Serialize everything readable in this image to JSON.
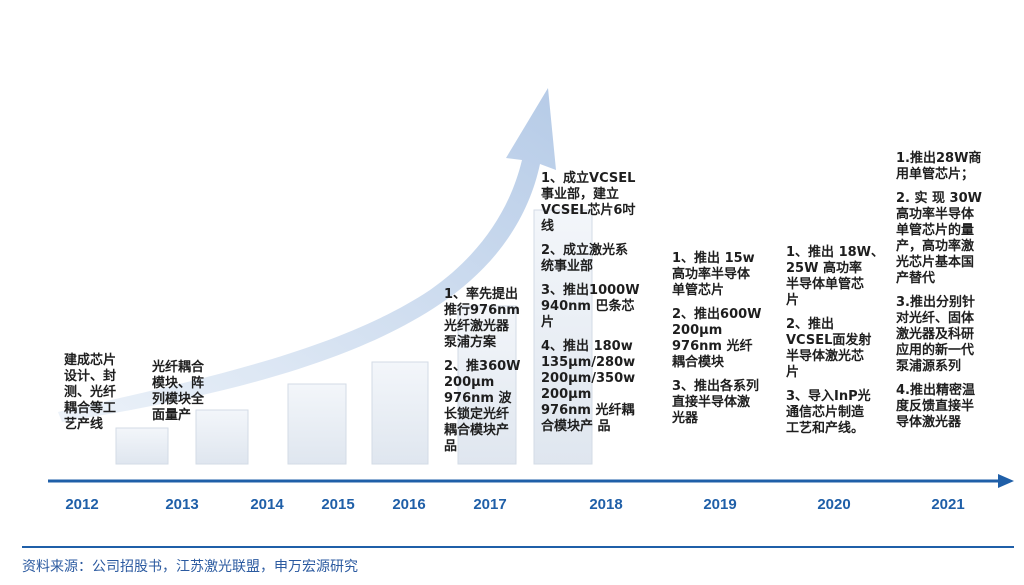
{
  "timeline": {
    "years": [
      "2012",
      "2013",
      "2014",
      "2015",
      "2016",
      "2017",
      "2018",
      "2019",
      "2020",
      "2021"
    ]
  },
  "milestones": {
    "y2012": [
      "建成芯片",
      "设计、封",
      "测、光纤",
      "耦合等工",
      "艺产线"
    ],
    "y2013": [
      "光纤耦合",
      "模块、阵",
      "列模块全",
      "面量产"
    ],
    "y2017": [
      "1、率先提出",
      "推行976nm",
      "光纤激光器",
      "泵浦方案",
      "",
      "2、推360W",
      "200μm",
      "976nm 波",
      "长锁定光纤",
      "耦合模块产",
      "品"
    ],
    "y2018": [
      "1、成立VCSEL",
      "事业部，建立",
      "VCSEL芯片6吋",
      "线",
      "",
      "2、成立激光系",
      "统事业部",
      "",
      "3、推出1000W",
      "940nm 巴条芯",
      "片",
      "",
      "4、推出 180w",
      "135μm/280w",
      "200μm/350w",
      "200μm",
      "976nm 光纤耦",
      "合模块产 品"
    ],
    "y2019": [
      "1、推出 15w",
      "高功率半导体",
      "单管芯片",
      "",
      "2、推出600W",
      "200μm",
      "976nm 光纤",
      "耦合模块",
      "",
      "3、推出各系列",
      "直接半导体激",
      "光器"
    ],
    "y2020": [
      "1、推出 18W、",
      "25W 高功率",
      "半导体单管芯",
      "片",
      "",
      "2、推出",
      "VCSEL面发射",
      "半导体激光芯",
      "片",
      "",
      "3、导入InP光",
      "通信芯片制造",
      "工艺和产线。"
    ],
    "y2021": [
      "1.推出28W商",
      "用单管芯片；",
      "",
      "2. 实 现 30W",
      "高功率半导体",
      "单管芯片的量",
      "产，高功率激",
      "光芯片基本国",
      "产替代",
      "",
      "3.推出分别针",
      "对光纤、固体",
      "激光器及科研",
      "应用的新一代",
      "泵浦源系列",
      "",
      "4.推出精密温",
      "度反馈直接半",
      "导体激光器"
    ]
  },
  "source": "资料来源：公司招股书，江苏激光联盟，申万宏源研究",
  "colors": {
    "year": "#1f5fa8",
    "axis": "#1f5fa8",
    "growth_arrow": "#b9cde8",
    "block": "#e6ecf3"
  }
}
